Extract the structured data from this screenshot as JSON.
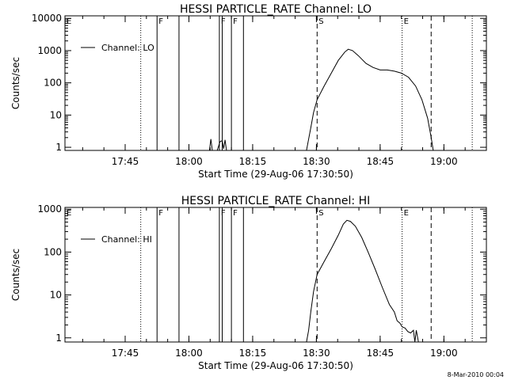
{
  "footer_stamp": "8-Mar-2010 00:04",
  "chart_data": [
    {
      "type": "line",
      "title": "HESSI PARTICLE_RATE Channel: LO",
      "xlabel": "Start Time (29-Aug-06 17:30:50)",
      "ylabel": "Counts/sec",
      "y_scale": "log",
      "xlim": [
        "17:30:50",
        "19:10:00"
      ],
      "ylim": [
        0.8,
        12000
      ],
      "x_ticks": [
        "17:45",
        "18:00",
        "18:15",
        "18:30",
        "18:45",
        "19:00"
      ],
      "y_ticks": [
        "1",
        "10",
        "100",
        "1000",
        "10000"
      ],
      "legend": {
        "position": "top-left",
        "entries": [
          "Channel: LO"
        ]
      },
      "markers": [
        {
          "label": "E",
          "time": "17:30:50",
          "style": "dotted"
        },
        {
          "label": "",
          "time": "17:48:40",
          "style": "dotted"
        },
        {
          "label": "F",
          "time": "17:52:30",
          "style": "solid"
        },
        {
          "label": "",
          "time": "17:57:40",
          "style": "solid"
        },
        {
          "label": "F",
          "time": "18:07:10",
          "style": "solid"
        },
        {
          "label": "",
          "time": "18:07:50",
          "style": "solid"
        },
        {
          "label": "F",
          "time": "18:10:00",
          "style": "solid"
        },
        {
          "label": "",
          "time": "18:12:50",
          "style": "solid"
        },
        {
          "label": "S",
          "time": "18:30:10",
          "style": "dashed"
        },
        {
          "label": "E",
          "time": "18:50:10",
          "style": "dotted"
        },
        {
          "label": "",
          "time": "18:57:00",
          "style": "dashed"
        },
        {
          "label": "",
          "time": "19:06:40",
          "style": "dotted"
        }
      ],
      "series": [
        {
          "name": "Channel: LO",
          "points": [
            [
              "18:04:50",
              0.8
            ],
            [
              "18:05:10",
              1.8
            ],
            [
              "18:05:30",
              0.8
            ],
            [
              "18:06:40",
              0.8
            ],
            [
              "18:07:20",
              1.5
            ],
            [
              "18:07:50",
              1.6
            ],
            [
              "18:08:10",
              0.9
            ],
            [
              "18:08:30",
              1.7
            ],
            [
              "18:08:50",
              0.8
            ],
            [
              "18:27:40",
              0.8
            ],
            [
              "18:28:10",
              1.8
            ],
            [
              "18:28:40",
              4
            ],
            [
              "18:29:20",
              12
            ],
            [
              "18:30:10",
              30
            ],
            [
              "18:31:50",
              80
            ],
            [
              "18:33:30",
              200
            ],
            [
              "18:35:10",
              500
            ],
            [
              "18:36:40",
              900
            ],
            [
              "18:37:30",
              1100
            ],
            [
              "18:38:30",
              1000
            ],
            [
              "18:39:50",
              700
            ],
            [
              "18:41:40",
              400
            ],
            [
              "18:43:20",
              300
            ],
            [
              "18:45:00",
              250
            ],
            [
              "18:46:40",
              250
            ],
            [
              "18:48:20",
              230
            ],
            [
              "18:50:00",
              200
            ],
            [
              "18:51:40",
              150
            ],
            [
              "18:53:20",
              80
            ],
            [
              "18:54:50",
              30
            ],
            [
              "18:56:10",
              8
            ],
            [
              "18:57:00",
              2
            ],
            [
              "18:57:30",
              0.8
            ]
          ]
        }
      ]
    },
    {
      "type": "line",
      "title": "HESSI PARTICLE_RATE Channel: HI",
      "xlabel": "Start Time (29-Aug-06 17:30:50)",
      "ylabel": "Counts/sec",
      "y_scale": "log",
      "xlim": [
        "17:30:50",
        "19:10:00"
      ],
      "ylim": [
        0.8,
        1100
      ],
      "x_ticks": [
        "17:45",
        "18:00",
        "18:15",
        "18:30",
        "18:45",
        "19:00"
      ],
      "y_ticks": [
        "1",
        "10",
        "100",
        "1000"
      ],
      "legend": {
        "position": "top-left",
        "entries": [
          "Channel: HI"
        ]
      },
      "markers": [
        {
          "label": "E",
          "time": "17:30:50",
          "style": "dotted"
        },
        {
          "label": "",
          "time": "17:48:40",
          "style": "dotted"
        },
        {
          "label": "F",
          "time": "17:52:30",
          "style": "solid"
        },
        {
          "label": "",
          "time": "17:57:40",
          "style": "solid"
        },
        {
          "label": "F",
          "time": "18:07:10",
          "style": "solid"
        },
        {
          "label": "",
          "time": "18:07:50",
          "style": "solid"
        },
        {
          "label": "F",
          "time": "18:10:00",
          "style": "solid"
        },
        {
          "label": "",
          "time": "18:12:50",
          "style": "solid"
        },
        {
          "label": "S",
          "time": "18:30:10",
          "style": "dashed"
        },
        {
          "label": "E",
          "time": "18:50:10",
          "style": "dotted"
        },
        {
          "label": "",
          "time": "18:57:00",
          "style": "dashed"
        },
        {
          "label": "",
          "time": "19:06:40",
          "style": "dotted"
        }
      ],
      "series": [
        {
          "name": "Channel: HI",
          "points": [
            [
              "18:27:40",
              0.8
            ],
            [
              "18:28:10",
              1.5
            ],
            [
              "18:28:40",
              4
            ],
            [
              "18:29:20",
              12
            ],
            [
              "18:30:10",
              30
            ],
            [
              "18:31:50",
              60
            ],
            [
              "18:33:30",
              120
            ],
            [
              "18:35:10",
              250
            ],
            [
              "18:36:20",
              450
            ],
            [
              "18:37:10",
              550
            ],
            [
              "18:38:00",
              520
            ],
            [
              "18:39:10",
              400
            ],
            [
              "18:40:40",
              220
            ],
            [
              "18:42:10",
              100
            ],
            [
              "18:43:50",
              40
            ],
            [
              "18:45:30",
              15
            ],
            [
              "18:47:10",
              6
            ],
            [
              "18:48:20",
              4
            ],
            [
              "18:49:00",
              2.5
            ],
            [
              "18:49:40",
              2.2
            ],
            [
              "18:50:10",
              1.8
            ],
            [
              "18:50:50",
              1.7
            ],
            [
              "18:51:30",
              1.4
            ],
            [
              "18:52:10",
              1.3
            ],
            [
              "18:52:50",
              1.5
            ],
            [
              "18:53:10",
              0.8
            ],
            [
              "18:53:30",
              1.5
            ],
            [
              "18:53:50",
              1.0
            ],
            [
              "18:54:00",
              0.8
            ]
          ]
        }
      ]
    }
  ]
}
